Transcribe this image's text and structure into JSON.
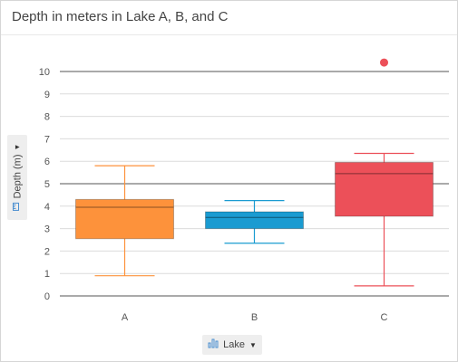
{
  "title": "Depth in meters in Lake A, B, and C",
  "y_axis": {
    "label": "Depth (m)",
    "icon": "ruler-icon",
    "dropdown_icon": "caret-down-icon"
  },
  "x_axis": {
    "label": "Lake",
    "icon": "bar-chart-icon",
    "dropdown_icon": "caret-down-icon"
  },
  "chart_data": {
    "type": "box",
    "title": "Depth in meters in Lake A, B, and C",
    "xlabel": "Lake",
    "ylabel": "Depth (m)",
    "ylim": [
      0,
      10
    ],
    "y_ticks": [
      0,
      1,
      2,
      3,
      4,
      5,
      6,
      7,
      8,
      9,
      10
    ],
    "grid": true,
    "categories": [
      "A",
      "B",
      "C"
    ],
    "boxes": [
      {
        "category": "A",
        "min": 0.9,
        "q1": 2.55,
        "median": 3.95,
        "q3": 4.3,
        "max": 5.8,
        "outliers": [],
        "color": "#fd923b"
      },
      {
        "category": "B",
        "min": 2.35,
        "q1": 3.0,
        "median": 3.5,
        "q3": 3.75,
        "max": 4.25,
        "outliers": [],
        "color": "#1a9bd1"
      },
      {
        "category": "C",
        "min": 0.45,
        "q1": 3.55,
        "median": 5.45,
        "q3": 5.95,
        "max": 6.35,
        "outliers": [
          10.4
        ],
        "color": "#ec5059"
      }
    ]
  }
}
